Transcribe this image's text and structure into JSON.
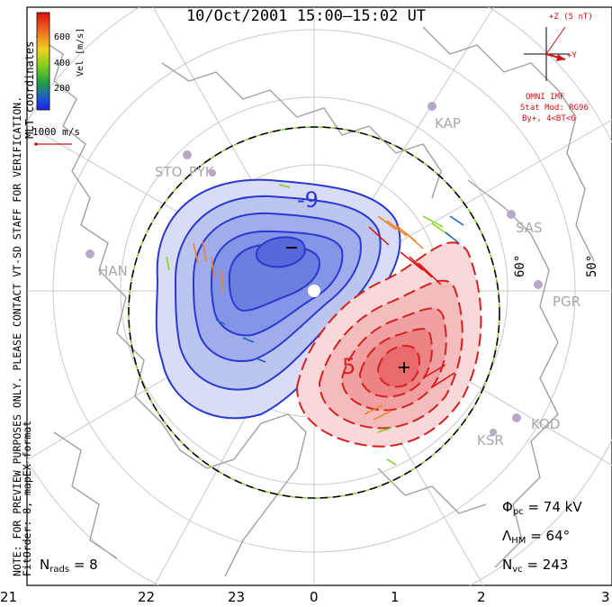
{
  "title": "10/Oct/2001 15:00–15:02 UT",
  "velocity_scale": {
    "label": "Vel [m/s]",
    "ticks": [
      "600",
      "400",
      "200"
    ],
    "colors": [
      "#e01010",
      "#f08020",
      "#f0d020",
      "#80d020",
      "#20a040",
      "#2060c0",
      "#2020e0"
    ]
  },
  "coords_label": "MLT coordinates",
  "ref_vector_label": "1000 m/s",
  "imf": {
    "z_label": "+Z (5 nT)",
    "y_label": "+Y",
    "source": "OMNI IMF",
    "model": "Stat Mod: RG96",
    "condition": "By+, 4<BT<6"
  },
  "watermark": "NOTE: FOR PREVIEW PURPOSES ONLY. PLEASE CONTACT VT-SD STAFF FOR VERIFICATION.",
  "fit_info": "FitOrder: 8, mapEX format",
  "stations": [
    "STO",
    "PYK",
    "KAP",
    "SAS",
    "HAN",
    "PGR",
    "KOD",
    "KSR"
  ],
  "lat_labels": [
    "60°",
    "50°"
  ],
  "mlt_labels": [
    "21",
    "22",
    "23",
    "0",
    "1",
    "2",
    "3"
  ],
  "contour_labels": {
    "neg": "-9",
    "pos": "5"
  },
  "stats": {
    "phi_label": "Φ",
    "phi_sub": "pc",
    "phi_value": "= 74 kV",
    "lambda_label": "Λ",
    "lambda_sub": "HM",
    "lambda_value": "= 64°",
    "nvc_label": "N",
    "nvc_sub": "vc",
    "nvc_value": "= 243",
    "nrads_label": "N",
    "nrads_sub": "rads",
    "nrads_value": "= 8"
  },
  "colors": {
    "negative_cell": "#2a3ad0",
    "positive_cell": "#d82020",
    "boundary": "#000000"
  }
}
